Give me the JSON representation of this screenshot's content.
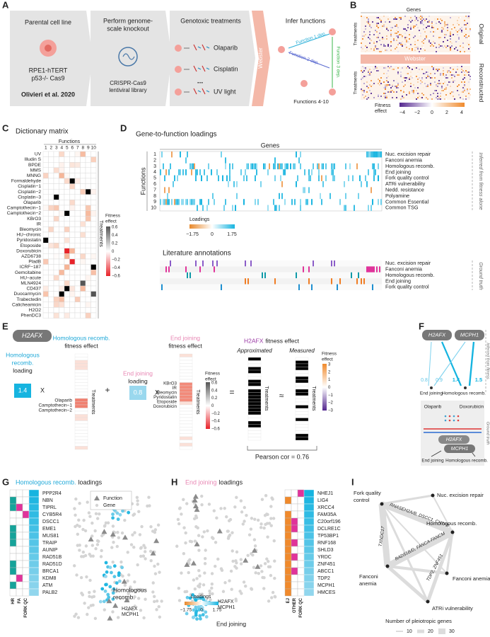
{
  "panel_labels": [
    "A",
    "B",
    "C",
    "D",
    "E",
    "F",
    "G",
    "H",
    "I"
  ],
  "a": {
    "step1_title": "Parental cell line",
    "cell_line": [
      "RPE1-hTERT",
      "p53-/- Cas9"
    ],
    "citation": "Olivieri et al. 2020",
    "step2_title": [
      "Perform genome-",
      "scale knockout"
    ],
    "library": [
      "CRISPR-Cas9",
      "lentiviral library"
    ],
    "step3_title": "Genotoxic treatments",
    "treatments": [
      "Olaparib",
      "Cisplatin",
      "UV light"
    ],
    "ellipsis": "...",
    "webster": "Webster",
    "step4_title": "Infer functions",
    "functions": [
      "Function 1 dep.",
      "Function 2 dep.",
      "Function 3 dep."
    ],
    "more": "Functions 4-10"
  },
  "b": {
    "genes": "Genes",
    "treatments": "Treatments",
    "original": "Original",
    "webster": "Webster",
    "reconstructed": "Reconstructed",
    "legend_title": [
      "Fitness",
      "effect"
    ],
    "legend_ticks": [
      "−4",
      "−2",
      "0",
      "2",
      "4"
    ]
  },
  "c": {
    "title": "Dictionary matrix",
    "functions": "Functions",
    "function_numbers": [
      "1",
      "2",
      "3",
      "4",
      "5",
      "6",
      "7",
      "8",
      "9",
      "10"
    ],
    "treatments": [
      "UV",
      "Illudin S",
      "BPDE",
      "MMS",
      "MNNG",
      "Formaldehyde",
      "Cisplatin−1",
      "Cisplatin−2",
      "Cisplatin−3",
      "Olaparib",
      "Camptothecin−1",
      "Camptothecin−2",
      "KBrO3",
      "IR",
      "Bleomycin",
      "HU−chronic",
      "Pyridostatin",
      "Etoposide",
      "Doxorubicin",
      "AZD6738",
      "PladB",
      "ICRF−187",
      "Gemcitabine",
      "HU−acute",
      "MLN4924",
      "CD437",
      "Duocarmycin",
      "Trabectedin",
      "Calicheamicin",
      "H2O2",
      "PhenDC3"
    ],
    "axis": "Treatments",
    "legend_title": [
      "Fitness",
      "effect"
    ],
    "legend_ticks": [
      "0.6",
      "0.4",
      "0.2",
      "0",
      "−0.2",
      "−0.4",
      "−0.6"
    ]
  },
  "d": {
    "title": "Gene-to-function loadings",
    "genes": "Genes",
    "functions": "Functions",
    "function_numbers": [
      "1",
      "2",
      "3",
      "4",
      "5",
      "6",
      "7",
      "8",
      "9",
      "10"
    ],
    "function_names": [
      "Nuc. excision repair",
      "Fanconi anemia",
      "Homologous recomb.",
      "End joining",
      "Fork quality control",
      "ATRi vulnerability",
      "Nedd. resistance",
      "Polyamine",
      "Common Essential",
      "Common TSG"
    ],
    "inferred": "Inferred from fitness alone",
    "legend_title": "Loadings",
    "legend_ticks": [
      "−1.75",
      "0",
      "1.75"
    ],
    "lit_title": "Literature annotations",
    "lit_names": [
      "Nuc. excision repair",
      "Fanconi anemia",
      "Homologous recomb.",
      "End joining",
      "Fork quality control"
    ],
    "ground_truth": "Ground truth"
  },
  "e": {
    "gene": "H2AFX",
    "hr_loading_label": [
      "Homologous",
      "recomb.",
      "loading"
    ],
    "hr_loading": "1.4",
    "times": "X",
    "hr_effect": [
      "Homologous recomb.",
      "fitness effect"
    ],
    "hr_treatments": [
      "Olaparib",
      "Camptothecin−1",
      "Camptothecin−2"
    ],
    "treatments": "Treatments",
    "plus": "+",
    "ej_loading_label": [
      "End joining",
      "loading"
    ],
    "ej_loading": "0.8",
    "ej_effect": [
      "End joining",
      "fitness effect"
    ],
    "ej_treatments": [
      "KBrO3",
      "IR",
      "Bleomycin",
      "Pyridostatin",
      "Etoposide",
      "Doxorubicin"
    ],
    "legend1_title": [
      "Fitness",
      "effect"
    ],
    "legend1_ticks": [
      "0.6",
      "0.4",
      "0.2",
      "0",
      "−0.2",
      "−0.4",
      "−0.6"
    ],
    "equals": "=",
    "effect_gene": "H2AFX",
    "effect_title": "fitness effect",
    "approx": "Approximated",
    "measured": "Measured",
    "approx_sign": "≈",
    "legend2_title": [
      "Fitness",
      "effect"
    ],
    "legend2_ticks": [
      "3",
      "2",
      "1",
      "0",
      "−1",
      "−2",
      "−3"
    ],
    "pearson": "Pearson cor  = 0.76"
  },
  "f": {
    "genes": [
      "H2AFX",
      "MCPH1"
    ],
    "edge_labels": [
      "0.8",
      "0.9",
      "1.4",
      "1.5"
    ],
    "functions": [
      "End joining",
      "Homologous recomb."
    ],
    "inferred": "Inferred from fitness",
    "drugs": [
      "Olaparib",
      "Doxorubicin"
    ],
    "ground_truth": "Ground truth"
  },
  "g": {
    "title_a": "Homologous recomb.",
    "title_b": "loadings",
    "genes": [
      "PPP2R4",
      "NBN",
      "TIPRL",
      "CYB5R4",
      "DSCC1",
      "EME1",
      "MUS81",
      "TRAIP",
      "AUNIP",
      "RAD51B",
      "RAD51D",
      "BRCA1",
      "KDM8",
      "ATM",
      "PALB2"
    ],
    "columns": [
      "HR",
      "FA",
      "FORK QC"
    ],
    "legend": [
      "Function",
      "Gene"
    ],
    "annotation": [
      "Homologous",
      "recomb."
    ],
    "genes_marked": [
      "H2AFX",
      "MCPH1"
    ]
  },
  "h": {
    "title_a": "End joining",
    "title_b": "loadings",
    "genes": [
      "NHEJ1",
      "LIG4",
      "XRCC4",
      "FAM35A",
      "C20orf196",
      "DCLRE1C",
      "TP53BP1",
      "RNF168",
      "SHLD3",
      "YRDC",
      "ZNF451",
      "ABCC1",
      "TDP2",
      "MCPH1",
      "HMCES"
    ],
    "columns": [
      "EJ",
      "OTHER",
      "FORK QC"
    ],
    "genes_marked": [
      "H2AFX",
      "MCPH1"
    ],
    "annotation": "End joining",
    "legend_title": "Loadings",
    "legend_ticks": [
      "−1.75",
      "0",
      "1.75"
    ]
  },
  "i": {
    "fork": [
      "Fork quality",
      "control"
    ],
    "nodes": [
      "Nuc. excision repair",
      "Homologous recomb.",
      "Fanconi anemia",
      "ATRi vulnerability",
      "End joining"
    ],
    "fanconi": [
      "Fanconi",
      "anemia"
    ],
    "edge_labels": [
      "RNASEH2A/B, DSCC1, CHTF8",
      "TXNDC17",
      "RAD51B/D, FANCA-FANCM",
      "TDP2, ZNF451"
    ],
    "legend_title": "Number of pleiotropic genes",
    "legend_ticks": [
      "10",
      "20",
      "30"
    ]
  }
}
